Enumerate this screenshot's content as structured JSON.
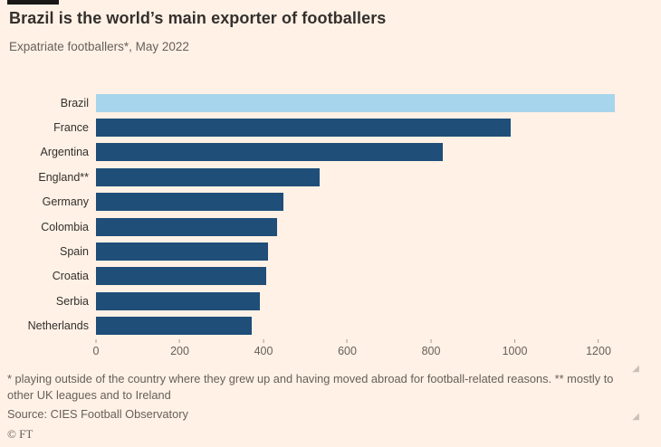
{
  "header": {
    "title": "Brazil is the world’s main exporter of footballers",
    "subtitle": "Expatriate footballers*, May 2022"
  },
  "chart_data": {
    "type": "bar",
    "orientation": "horizontal",
    "title": "Brazil is the world’s main exporter of footballers",
    "subtitle": "Expatriate footballers*, May 2022",
    "categories": [
      "Brazil",
      "France",
      "Argentina",
      "England**",
      "Germany",
      "Colombia",
      "Spain",
      "Croatia",
      "Serbia",
      "Netherlands"
    ],
    "values": [
      1219,
      975,
      815,
      525,
      440,
      425,
      405,
      400,
      385,
      365
    ],
    "xlabel": "",
    "ylabel": "",
    "xlim": [
      0,
      1200
    ],
    "ticks": [
      0,
      200,
      400,
      600,
      800,
      1000,
      1200
    ],
    "grid": false,
    "legend": "none",
    "highlight_category": "Brazil",
    "colors": {
      "bar": "#1F4E79",
      "highlight": "#A7D5EC",
      "background": "#FFF1E5"
    }
  },
  "footer": {
    "footnote": "* playing outside of the country where they grew up and having moved abroad for football-related reasons. ** mostly to other UK leagues and to Ireland",
    "source": "Source: CIES Football Observatory",
    "credit": "© FT"
  },
  "icons": {
    "corner": "◢"
  }
}
